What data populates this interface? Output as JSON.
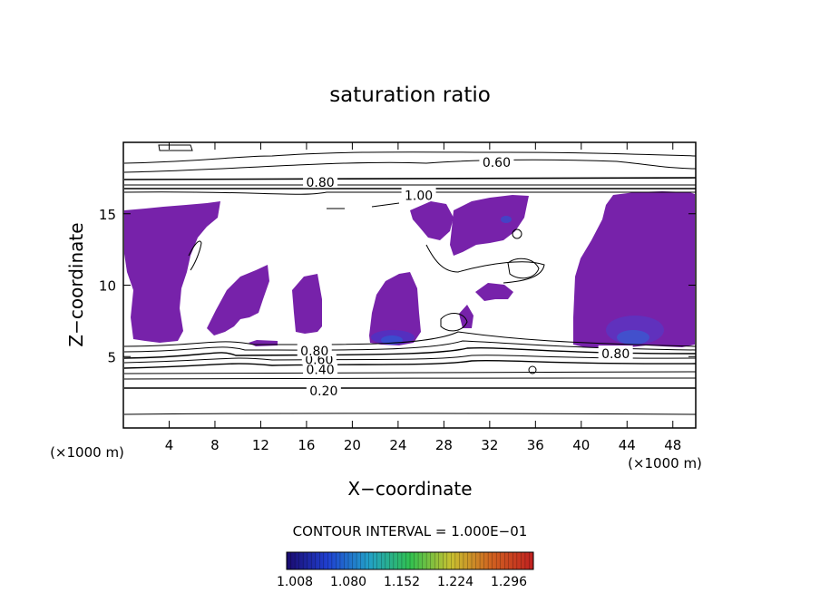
{
  "chart_data": {
    "type": "heatmap",
    "title": "saturation ratio",
    "xlabel": "X−coordinate",
    "ylabel": "Z−coordinate",
    "x_unit_left": "(×1000 m)",
    "x_unit_right": "(×1000 m)",
    "xlim": [
      0,
      50
    ],
    "ylim": [
      0,
      20
    ],
    "x_ticks": [
      4,
      8,
      12,
      16,
      20,
      24,
      28,
      32,
      36,
      40,
      44,
      48
    ],
    "y_ticks": [
      5,
      10,
      15
    ],
    "contour_interval_text": "CONTOUR INTERVAL = 1.000E−01",
    "contour_levels": [
      {
        "label": "0.20",
        "x": 17.5,
        "z": 2.6
      },
      {
        "label": "0.40",
        "x": 17.2,
        "z": 4.1
      },
      {
        "label": "0.60",
        "x": 17.1,
        "z": 4.8
      },
      {
        "label": "0.80",
        "x": 16.7,
        "z": 5.4
      },
      {
        "label": "0.60",
        "x": 32.6,
        "z": 18.6
      },
      {
        "label": "0.80",
        "x": 17.2,
        "z": 17.2
      },
      {
        "label": "1.00",
        "x": 25.8,
        "z": 16.3
      },
      {
        "label": "0.80",
        "x": 43.0,
        "z": 5.2
      }
    ],
    "colorbar": {
      "tick_labels": [
        "1.008",
        "1.080",
        "1.152",
        "1.224",
        "1.296"
      ],
      "colors": [
        "#1a0a6e",
        "#2040d0",
        "#22a0c8",
        "#30c050",
        "#c8c030",
        "#d06020",
        "#c02020"
      ]
    },
    "fill_color": "#7722aa"
  }
}
